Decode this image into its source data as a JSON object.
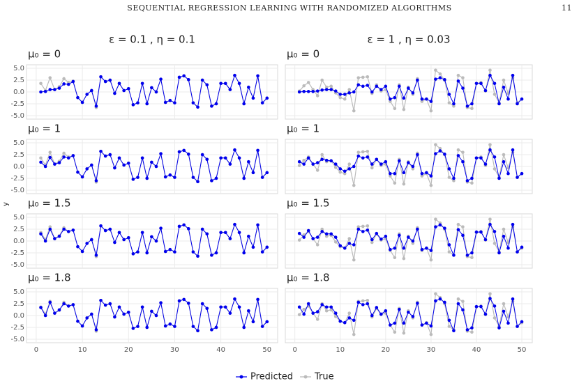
{
  "header": {
    "title": "SEQUENTIAL REGRESSION LEARNING WITH RANDOMIZED ALGORITHMS",
    "page": "11"
  },
  "chart_data": {
    "type": "line",
    "ylabel": "y",
    "legend": "bottom",
    "x": [
      1,
      2,
      3,
      4,
      5,
      6,
      7,
      8,
      9,
      10,
      11,
      12,
      13,
      14,
      15,
      16,
      17,
      18,
      19,
      20,
      21,
      22,
      23,
      24,
      25,
      26,
      27,
      28,
      29,
      30,
      31,
      32,
      33,
      34,
      35,
      36,
      37,
      38,
      39,
      40,
      41,
      42,
      43,
      44,
      45,
      46,
      47,
      48,
      49,
      50
    ],
    "xlim": [
      -2.1,
      52.3
    ],
    "xticks": [
      0,
      10,
      20,
      30,
      40,
      50
    ],
    "ylim": [
      -5.74,
      5.74
    ],
    "yticks": [
      {
        "value": 5,
        "label": "5.0"
      },
      {
        "value": 2.5,
        "label": "2.5"
      },
      {
        "value": 0,
        "label": "0.0"
      },
      {
        "value": -2.5,
        "label": "-2.5"
      },
      {
        "value": -5,
        "label": "-5.0"
      }
    ],
    "grid": true,
    "series": [
      {
        "name": "Predicted",
        "color": "#0000ee"
      },
      {
        "name": "True",
        "color": "#bbbbbb"
      }
    ],
    "columns": [
      {
        "title": "ε = 0.1 , η = 0.1",
        "true": [
          1.8,
          0.3,
          3.0,
          0.5,
          1.1,
          2.8,
          2.0,
          2.3,
          -1.2,
          -2.2,
          -0.5,
          0.3,
          -3.3,
          3.2,
          2.2,
          2.5,
          -0.3,
          1.8,
          0.3,
          0.7,
          -2.7,
          -2.3,
          1.8,
          -2.5,
          0.9,
          0,
          2.7,
          -2.2,
          -1.8,
          -2.3,
          3.1,
          3.4,
          2.6,
          -2.3,
          -3.2,
          2.5,
          1.5,
          -3.0,
          -2.5,
          1.8,
          1.8,
          0.5,
          3.5,
          1.8,
          -2.5,
          1.0,
          -1.3,
          3.4,
          -2.3,
          -1.3
        ],
        "panels": [
          {
            "label": "μ₀ = 0",
            "values": [
              0,
              0.1,
              0.5,
              0.5,
              0.8,
              1.7,
              1.6,
              2.2,
              -1.2,
              -2.2,
              -0.5,
              0.3,
              -3.0,
              3.2,
              2.2,
              2.5,
              -0.3,
              1.8,
              0.3,
              0.7,
              -2.7,
              -2.3,
              1.8,
              -2.5,
              0.9,
              0,
              2.7,
              -2.2,
              -1.8,
              -2.3,
              3.1,
              3.4,
              2.6,
              -2.3,
              -3.2,
              2.5,
              1.5,
              -3.0,
              -2.5,
              1.8,
              1.8,
              0.5,
              3.5,
              1.8,
              -2.5,
              1.0,
              -1.3,
              3.4,
              -2.3,
              -1.3
            ]
          },
          {
            "label": "μ₀ = 1",
            "values": [
              0.9,
              0,
              1.9,
              0.5,
              0.8,
              2.0,
              1.8,
              2.3,
              -1.2,
              -2.2,
              -0.5,
              0.3,
              -3.0,
              3.2,
              2.2,
              2.5,
              -0.3,
              1.8,
              0.3,
              0.7,
              -2.7,
              -2.3,
              1.8,
              -2.5,
              0.9,
              0,
              2.7,
              -2.2,
              -1.8,
              -2.3,
              3.1,
              3.4,
              2.6,
              -2.3,
              -3.2,
              2.5,
              1.5,
              -3.0,
              -2.5,
              1.8,
              1.8,
              0.5,
              3.5,
              1.8,
              -2.5,
              1.0,
              -1.3,
              3.4,
              -2.3,
              -1.3
            ]
          },
          {
            "label": "μ₀ = 1.5",
            "values": [
              1.5,
              0,
              2.5,
              0.5,
              1.0,
              2.5,
              2.0,
              2.3,
              -1.2,
              -2.2,
              -0.5,
              0.3,
              -3.0,
              3.2,
              2.2,
              2.5,
              -0.3,
              1.8,
              0.3,
              0.7,
              -2.7,
              -2.3,
              1.8,
              -2.5,
              0.9,
              0,
              2.7,
              -2.2,
              -1.8,
              -2.3,
              3.1,
              3.4,
              2.6,
              -2.3,
              -3.2,
              2.5,
              1.5,
              -3.0,
              -2.5,
              1.8,
              1.8,
              0.5,
              3.5,
              1.8,
              -2.5,
              1.0,
              -1.3,
              3.4,
              -2.3,
              -1.3
            ]
          },
          {
            "label": "μ₀ = 1.8",
            "values": [
              1.7,
              0,
              2.8,
              0.5,
              1.2,
              2.5,
              2.0,
              2.3,
              -1.2,
              -2.2,
              -0.5,
              0.3,
              -3.0,
              3.2,
              2.2,
              2.5,
              -0.3,
              1.8,
              0.3,
              0.7,
              -2.7,
              -2.3,
              1.8,
              -2.5,
              0.9,
              0,
              2.7,
              -2.2,
              -1.8,
              -2.3,
              3.1,
              3.4,
              2.6,
              -2.3,
              -3.2,
              2.5,
              1.5,
              -3.0,
              -2.5,
              1.8,
              1.8,
              0.5,
              3.5,
              1.8,
              -2.5,
              1.0,
              -1.3,
              3.4,
              -2.3,
              -1.3
            ]
          }
        ]
      },
      {
        "title": "ε = 1 , η = 0.03",
        "true": [
          0.2,
          1.3,
          2.0,
          0.5,
          -0.8,
          2.5,
          1.0,
          1.2,
          -0.2,
          -1.2,
          -1.5,
          0.5,
          -4.0,
          3.0,
          3.1,
          3.2,
          -0.3,
          1.5,
          0.2,
          0.5,
          -2.0,
          -3.5,
          1.5,
          -3.7,
          1.0,
          -0.5,
          2.8,
          -2.0,
          -1.5,
          -4.0,
          4.6,
          3.8,
          2.5,
          -2.3,
          -3.0,
          3.5,
          3.0,
          -3.3,
          -3.5,
          1.8,
          2.0,
          0.2,
          4.6,
          -0.5,
          -2.3,
          2.5,
          -0.3,
          3.0,
          -2.3,
          -1.5
        ],
        "panels": [
          {
            "label": "μ₀ = 0",
            "values": [
              0,
              0.1,
              0.1,
              0.1,
              0.2,
              0.4,
              0.5,
              0.5,
              0.2,
              -0.5,
              -0.5,
              -0.2,
              0,
              1.5,
              1.2,
              1.4,
              0,
              1.2,
              0.5,
              1.2,
              -1.5,
              -1.2,
              1.2,
              -1.3,
              0.8,
              -0.2,
              2.5,
              -1.5,
              -1.5,
              -2.0,
              2.7,
              3.0,
              2.6,
              -0.5,
              -2.5,
              2.3,
              0.8,
              -3.0,
              -2.5,
              1.8,
              1.8,
              0.3,
              3.5,
              1.8,
              -2.5,
              1.0,
              -1.5,
              3.5,
              -2.5,
              -1.5
            ]
          },
          {
            "label": "μ₀ = 1",
            "values": [
              1.0,
              0.5,
              1.8,
              0.5,
              0.8,
              1.5,
              1.3,
              1.2,
              0.5,
              -0.5,
              -1.0,
              -0.5,
              0,
              2.2,
              1.8,
              2.0,
              0.5,
              1.5,
              0.5,
              1.0,
              -1.5,
              -1.5,
              1.2,
              -1.3,
              0.8,
              0,
              2.5,
              -1.5,
              -1.3,
              -2.0,
              2.7,
              3.3,
              2.6,
              -0.5,
              -2.5,
              2.3,
              1.0,
              -3.0,
              -2.5,
              1.8,
              1.8,
              0.5,
              3.5,
              2.0,
              -2.5,
              1.0,
              -1.5,
              3.5,
              -2.3,
              -1.5
            ]
          },
          {
            "label": "μ₀ = 1.5",
            "values": [
              1.6,
              0.8,
              2.2,
              0.5,
              0.8,
              2.0,
              1.5,
              1.5,
              0.8,
              -1.0,
              -1.5,
              -0.5,
              -0.8,
              2.5,
              2.0,
              2.3,
              0.3,
              1.6,
              0.4,
              1.0,
              -1.8,
              -1.5,
              1.2,
              -1.5,
              0.8,
              0,
              2.5,
              -1.8,
              -1.5,
              -2.0,
              3.0,
              3.4,
              2.7,
              -0.8,
              -3.0,
              2.4,
              1.2,
              -3.0,
              -2.5,
              1.9,
              1.9,
              0.3,
              3.5,
              2.0,
              -2.5,
              1.0,
              -1.5,
              3.5,
              -2.3,
              -1.3
            ]
          },
          {
            "label": "μ₀ = 1.8",
            "values": [
              1.8,
              0.3,
              2.5,
              0.5,
              0.8,
              2.3,
              1.8,
              1.8,
              0.5,
              -1.2,
              -1.5,
              -0.5,
              -1.0,
              2.8,
              2.3,
              2.5,
              0,
              1.7,
              0.3,
              1.0,
              -2.0,
              -1.6,
              1.3,
              -1.6,
              0.7,
              -0.2,
              2.6,
              -2.0,
              -1.6,
              -2.2,
              3.1,
              3.5,
              2.8,
              -1.0,
              -3.2,
              2.5,
              1.2,
              -3.0,
              -2.6,
              1.9,
              1.9,
              0.3,
              3.6,
              2.0,
              -2.6,
              0.9,
              -1.6,
              3.5,
              -2.3,
              -1.3
            ]
          }
        ]
      }
    ]
  }
}
